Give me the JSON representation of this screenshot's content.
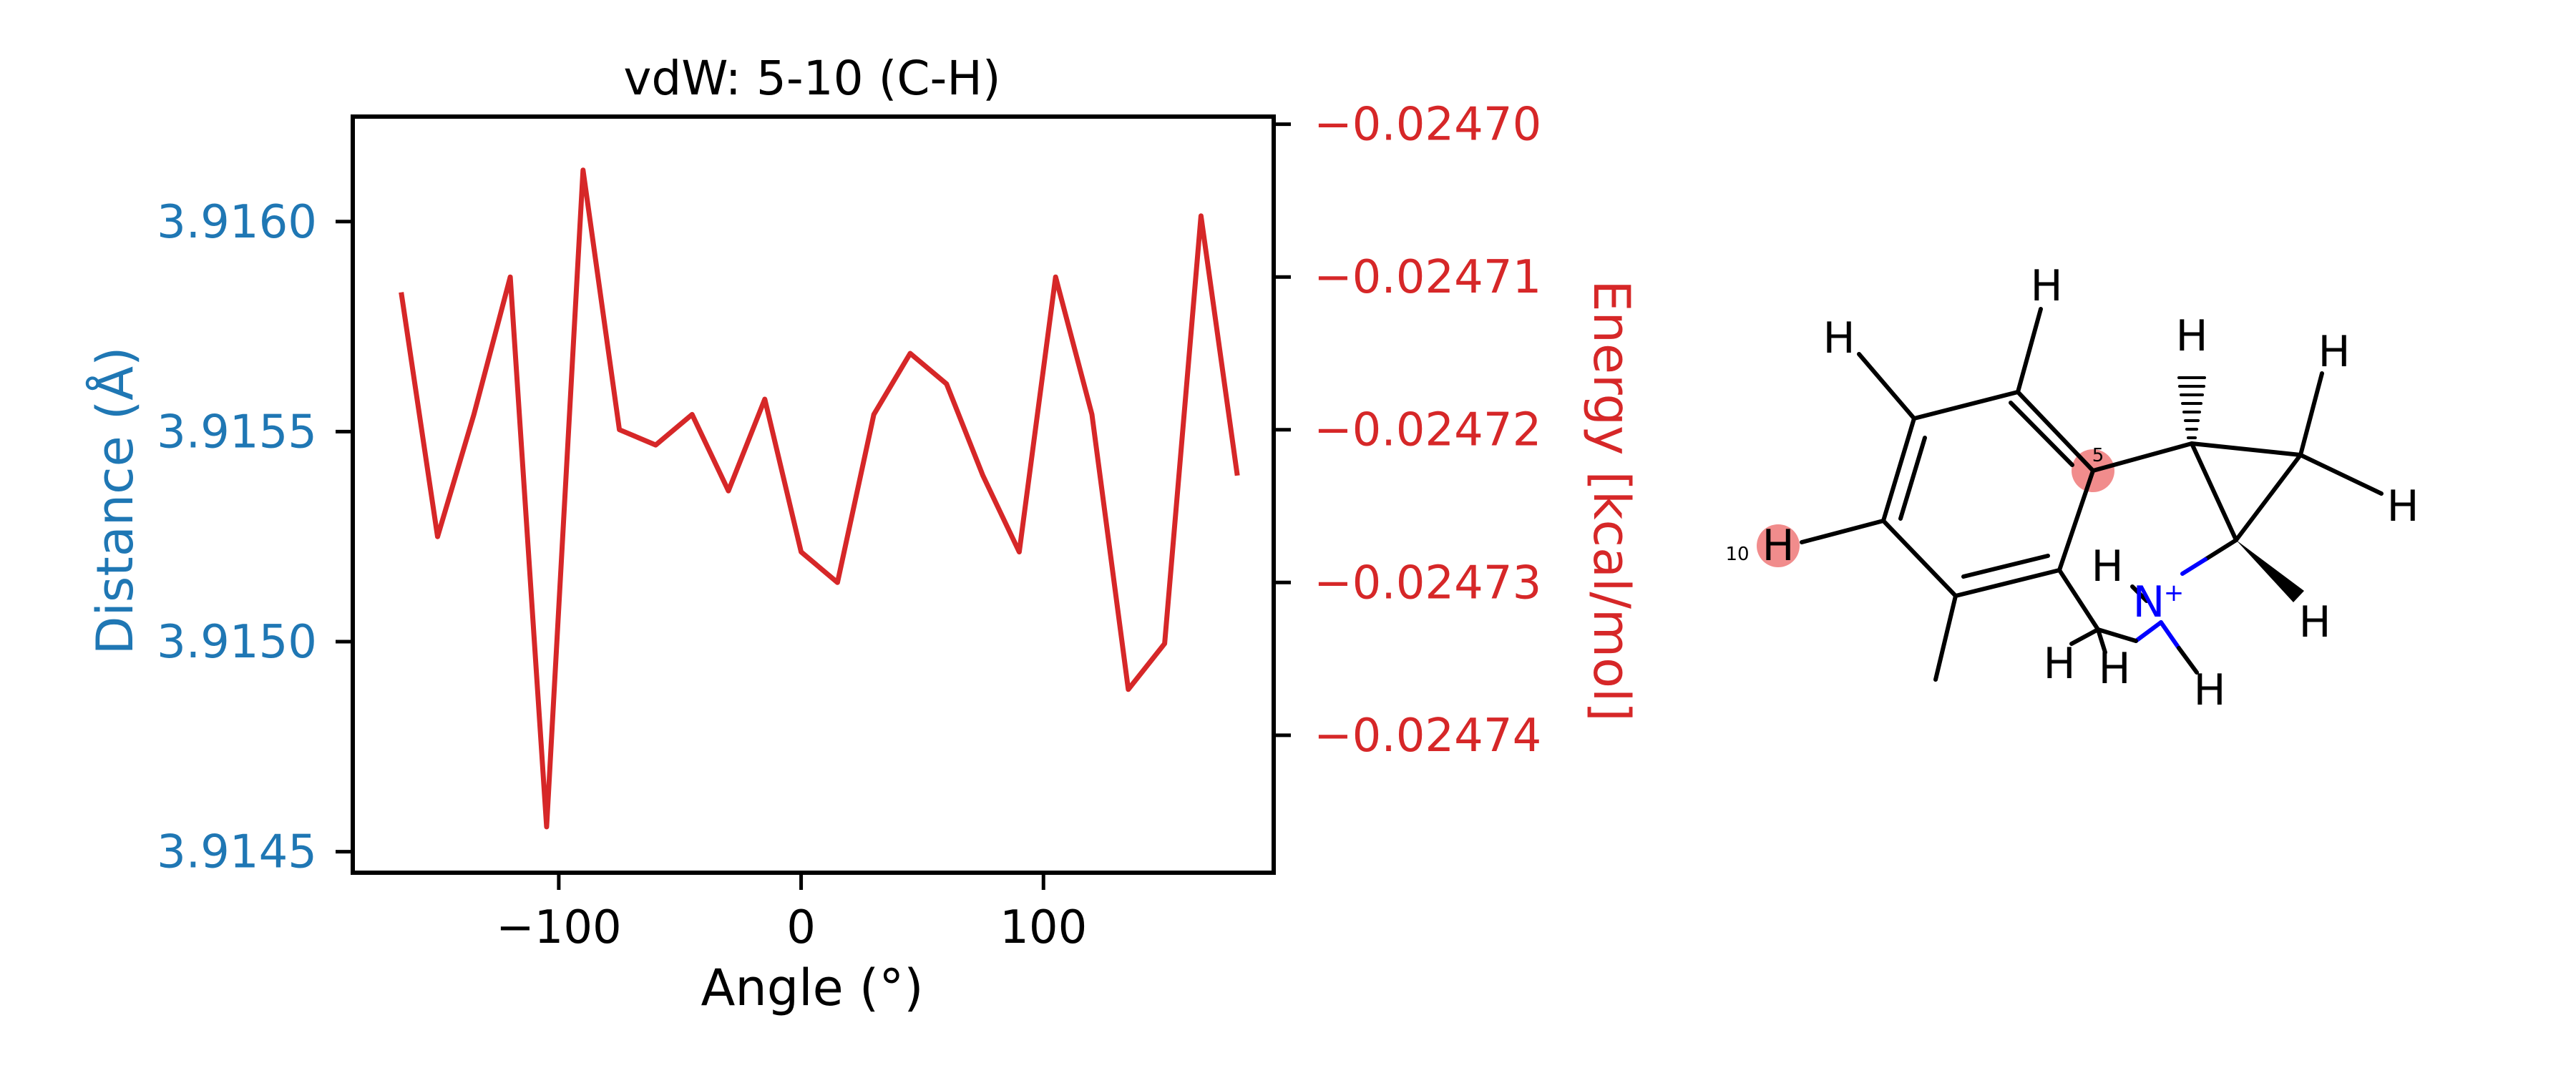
{
  "chart_data": {
    "type": "line",
    "title": "vdW: 5-10 (C-H)",
    "xlabel": "Angle (°)",
    "ylabel_left": "Distance (Å)",
    "ylabel_right": "Energy [kcal/mol]",
    "xlim": [
      -185,
      195
    ],
    "ylim_left": [
      3.91445,
      3.91625
    ],
    "ylim_right": [
      -0.024749,
      -0.0246995
    ],
    "x_ticks": [
      -100,
      0,
      100
    ],
    "x_tick_labels": [
      "−100",
      "0",
      "100"
    ],
    "y_left_ticks": [
      3.9145,
      3.915,
      3.9155,
      3.916
    ],
    "y_left_tick_labels": [
      "3.9145",
      "3.9150",
      "3.9155",
      "3.9160"
    ],
    "y_right_ticks": [
      -0.0247,
      -0.02471,
      -0.02472,
      -0.02473,
      -0.02474
    ],
    "y_right_tick_labels": [
      "−0.02470",
      "−0.02471",
      "−0.02472",
      "−0.02473",
      "−0.02474"
    ],
    "colors": {
      "left_axis": "#1f77b4",
      "series": "#d62728",
      "frame": "#000000"
    },
    "grid": false,
    "series": [
      {
        "axis": "right",
        "x": [
          -165,
          -150,
          -135,
          -120,
          -105,
          -90,
          -75,
          -60,
          -45,
          -30,
          -15,
          0,
          15,
          30,
          45,
          60,
          75,
          90,
          105,
          120,
          135,
          150,
          165,
          180
        ],
        "y": [
          -0.024711,
          -0.024727,
          -0.024719,
          -0.02471,
          -0.024746,
          -0.024703,
          -0.02472,
          -0.024721,
          -0.024719,
          -0.024724,
          -0.024718,
          -0.024728,
          -0.02473,
          -0.024719,
          -0.024715,
          -0.024717,
          -0.024723,
          -0.024728,
          -0.02471,
          -0.024719,
          -0.024737,
          -0.024734,
          -0.024706,
          -0.024723
        ]
      }
    ]
  },
  "molecule": {
    "atoms": [
      "H",
      "H",
      "H",
      "H",
      "H",
      "H",
      "H",
      "H",
      "H",
      "H",
      "H"
    ],
    "nitrogen_label": "N",
    "charge": "+",
    "index_labels": [
      "10",
      "5"
    ],
    "highlight_color": "#f08080",
    "bond_color": "#000000",
    "nitrogen_color": "#0000ff"
  }
}
